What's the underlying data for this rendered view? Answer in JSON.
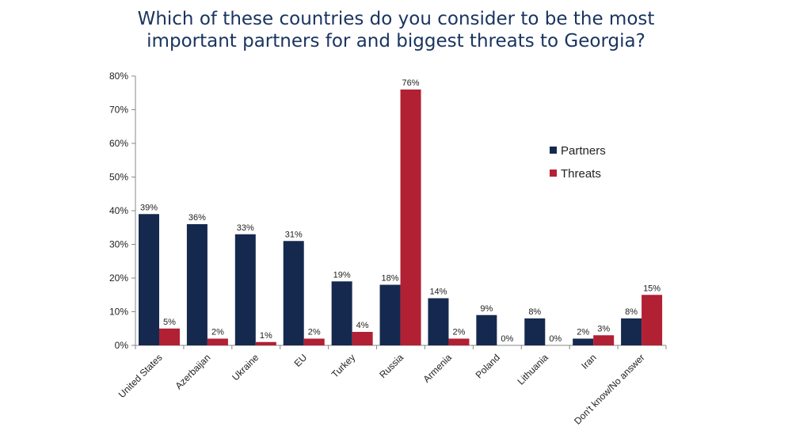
{
  "chart_data": {
    "type": "bar",
    "title_lines": [
      "Which of these countries do you consider to be the most",
      "important partners for and biggest threats to Georgia?"
    ],
    "categories": [
      "United States",
      "Azerbaijan",
      "Ukraine",
      "EU",
      "Turkey",
      "Russia",
      "Armenia",
      "Poland",
      "Lithuania",
      "Iran",
      "Don't know/No answer"
    ],
    "series": [
      {
        "name": "Partners",
        "color": "#15294f",
        "values": [
          39,
          36,
          33,
          31,
          19,
          18,
          14,
          9,
          8,
          2,
          8
        ]
      },
      {
        "name": "Threats",
        "color": "#b22033",
        "values": [
          5,
          2,
          1,
          2,
          4,
          76,
          2,
          0,
          0,
          3,
          15
        ]
      }
    ],
    "ylim": [
      0,
      80
    ],
    "yticks": [
      0,
      10,
      20,
      30,
      40,
      50,
      60,
      70,
      80
    ],
    "value_suffix": "%",
    "legend_position": "right",
    "grid": false
  }
}
